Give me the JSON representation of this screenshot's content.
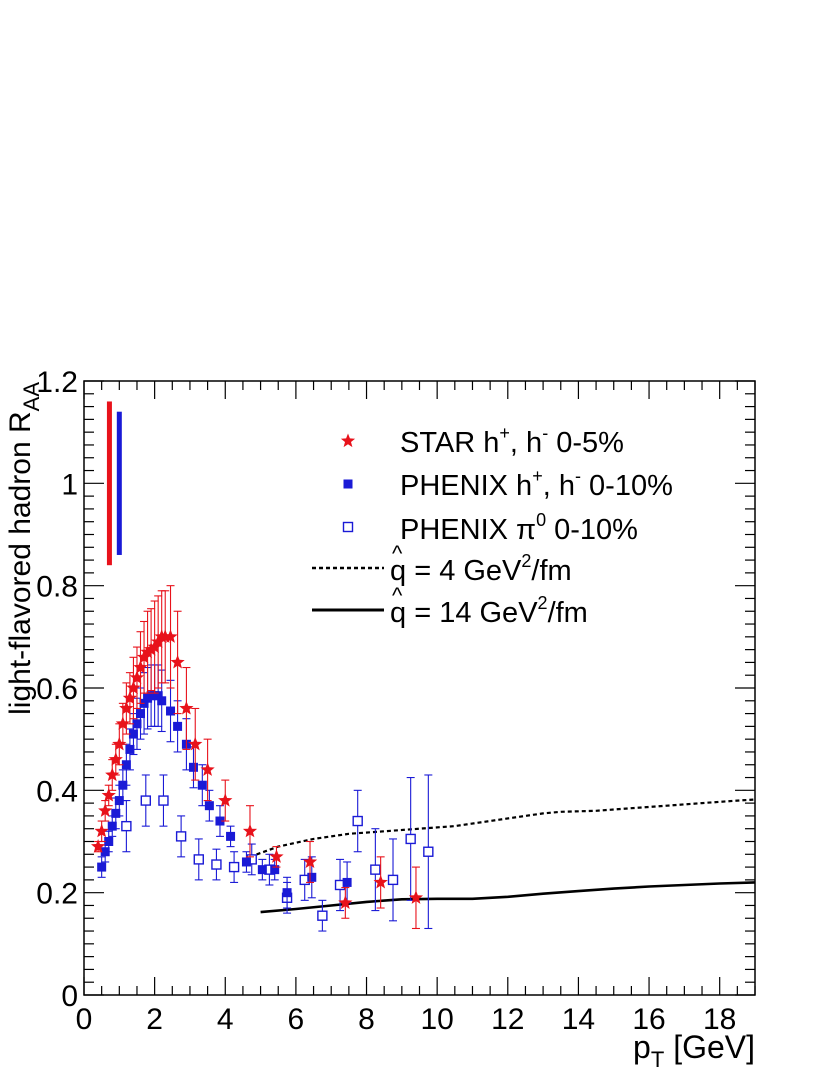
{
  "chart_data": {
    "type": "scatter",
    "xlabel": {
      "main": "p",
      "sub": "T",
      "unit": " [GeV]"
    },
    "ylabel": {
      "main": "light-flavored hadron R",
      "sub": "AA"
    },
    "xlim": [
      0,
      19
    ],
    "ylim": [
      0,
      1.2
    ],
    "xticks": [
      "0",
      "2",
      "4",
      "6",
      "8",
      "10",
      "12",
      "14",
      "16",
      "18"
    ],
    "xtick_values": [
      0,
      2,
      4,
      6,
      8,
      10,
      12,
      14,
      16,
      18
    ],
    "yticks": [
      "0",
      "0.2",
      "0.4",
      "0.6",
      "0.8",
      "1",
      "1.2"
    ],
    "ytick_values": [
      0,
      0.2,
      0.4,
      0.6,
      0.8,
      1.0,
      1.2
    ],
    "normalization_bars": [
      {
        "name": "STAR",
        "x": 0.72,
        "low": 0.84,
        "high": 1.16,
        "color": "#e8121b"
      },
      {
        "name": "PHENIX",
        "x": 1.0,
        "low": 0.86,
        "high": 1.14,
        "color": "#1a1ad6"
      }
    ],
    "series": [
      {
        "name": "STAR h+, h- 0-5%",
        "legend": {
          "name": "STAR",
          "particle": "h",
          "charges": [
            "+",
            "-"
          ],
          "centrality": "0-5%"
        },
        "marker": "star",
        "color": "#e8121b",
        "points": [
          [
            0.4,
            0.29,
            0.01
          ],
          [
            0.5,
            0.32,
            0.02
          ],
          [
            0.6,
            0.36,
            0.02
          ],
          [
            0.7,
            0.39,
            0.02
          ],
          [
            0.8,
            0.43,
            0.03
          ],
          [
            0.9,
            0.46,
            0.03
          ],
          [
            1.0,
            0.49,
            0.04
          ],
          [
            1.1,
            0.53,
            0.04
          ],
          [
            1.2,
            0.56,
            0.05
          ],
          [
            1.3,
            0.58,
            0.05
          ],
          [
            1.4,
            0.6,
            0.06
          ],
          [
            1.5,
            0.62,
            0.06
          ],
          [
            1.6,
            0.64,
            0.07
          ],
          [
            1.7,
            0.66,
            0.07
          ],
          [
            1.8,
            0.67,
            0.08
          ],
          [
            1.9,
            0.675,
            0.08
          ],
          [
            2.0,
            0.68,
            0.09
          ],
          [
            2.1,
            0.69,
            0.09
          ],
          [
            2.2,
            0.7,
            0.09
          ],
          [
            2.3,
            0.7,
            0.09
          ],
          [
            2.45,
            0.7,
            0.1
          ],
          [
            2.65,
            0.65,
            0.1
          ],
          [
            2.9,
            0.56,
            0.08
          ],
          [
            3.15,
            0.49,
            0.07
          ],
          [
            3.5,
            0.44,
            0.06
          ],
          [
            4.0,
            0.38,
            0.04
          ],
          [
            4.7,
            0.32,
            0.05
          ],
          [
            5.45,
            0.27,
            0.02
          ],
          [
            6.4,
            0.26,
            0.04
          ],
          [
            7.4,
            0.18,
            0.03
          ],
          [
            8.4,
            0.22,
            0.05
          ],
          [
            9.4,
            0.19,
            0.06
          ]
        ]
      },
      {
        "name": "PHENIX h+, h- 0-10%",
        "legend": {
          "name": "PHENIX",
          "particle": "h",
          "charges": [
            "+",
            "-"
          ],
          "centrality": "0-10%"
        },
        "marker": "square-filled",
        "color": "#1a1ad6",
        "points": [
          [
            0.5,
            0.25,
            0.02
          ],
          [
            0.6,
            0.28,
            0.02
          ],
          [
            0.7,
            0.3,
            0.02
          ],
          [
            0.8,
            0.33,
            0.02
          ],
          [
            0.9,
            0.355,
            0.03
          ],
          [
            1.0,
            0.38,
            0.03
          ],
          [
            1.1,
            0.41,
            0.03
          ],
          [
            1.2,
            0.45,
            0.04
          ],
          [
            1.3,
            0.48,
            0.04
          ],
          [
            1.4,
            0.51,
            0.04
          ],
          [
            1.5,
            0.53,
            0.05
          ],
          [
            1.6,
            0.55,
            0.05
          ],
          [
            1.7,
            0.57,
            0.06
          ],
          [
            1.8,
            0.58,
            0.06
          ],
          [
            1.9,
            0.585,
            0.06
          ],
          [
            2.0,
            0.585,
            0.06
          ],
          [
            2.1,
            0.585,
            0.06
          ],
          [
            2.2,
            0.575,
            0.06
          ],
          [
            2.45,
            0.555,
            0.06
          ],
          [
            2.65,
            0.525,
            0.05
          ],
          [
            2.9,
            0.49,
            0.05
          ],
          [
            3.1,
            0.445,
            0.04
          ],
          [
            3.35,
            0.41,
            0.04
          ],
          [
            3.55,
            0.37,
            0.03
          ],
          [
            3.85,
            0.34,
            0.03
          ],
          [
            4.15,
            0.31,
            0.02
          ],
          [
            4.6,
            0.26,
            0.02
          ],
          [
            5.05,
            0.245,
            0.02
          ],
          [
            5.4,
            0.245,
            0.02
          ],
          [
            5.75,
            0.2,
            0.03
          ],
          [
            6.45,
            0.23,
            0.04
          ],
          [
            7.45,
            0.22,
            0.04
          ]
        ]
      },
      {
        "name": "PHENIX pi0 0-10%",
        "legend": {
          "name": "PHENIX",
          "particle": "π",
          "charges": [
            "0"
          ],
          "centrality": "0-10%"
        },
        "marker": "square-open",
        "color": "#1a1ad6",
        "points": [
          [
            1.2,
            0.33,
            0.05
          ],
          [
            1.75,
            0.38,
            0.05
          ],
          [
            2.25,
            0.38,
            0.05
          ],
          [
            2.75,
            0.31,
            0.04
          ],
          [
            3.25,
            0.265,
            0.04
          ],
          [
            3.75,
            0.255,
            0.03
          ],
          [
            4.25,
            0.25,
            0.03
          ],
          [
            4.75,
            0.265,
            0.03
          ],
          [
            5.25,
            0.245,
            0.03
          ],
          [
            5.75,
            0.19,
            0.03
          ],
          [
            6.25,
            0.225,
            0.04
          ],
          [
            6.75,
            0.155,
            0.03
          ],
          [
            7.25,
            0.215,
            0.05
          ],
          [
            7.75,
            0.34,
            0.06
          ],
          [
            8.25,
            0.245,
            0.08
          ],
          [
            8.75,
            0.225,
            0.08
          ],
          [
            9.25,
            0.305,
            0.12
          ],
          [
            9.75,
            0.28,
            0.15
          ]
        ]
      }
    ],
    "curves": [
      {
        "name": "q-hat = 4 GeV2/fm",
        "legend": {
          "symbol": "q",
          "lhs_suffix": " = 4 GeV",
          "power": "2",
          "unit": "/fm"
        },
        "style": "dashed",
        "x": [
          4.7,
          5.5,
          6.5,
          7.5,
          8.5,
          9.5,
          10.5,
          11.5,
          12.5,
          13.0,
          13.5,
          14.5,
          15.5,
          16.5,
          17.5,
          18.5,
          19.0
        ],
        "y": [
          0.27,
          0.29,
          0.305,
          0.315,
          0.32,
          0.325,
          0.33,
          0.34,
          0.35,
          0.355,
          0.358,
          0.36,
          0.365,
          0.37,
          0.375,
          0.38,
          0.382
        ]
      },
      {
        "name": "q-hat = 14 GeV2/fm",
        "legend": {
          "symbol": "q",
          "lhs_suffix": " = 14 GeV",
          "power": "2",
          "unit": "/fm"
        },
        "style": "solid",
        "x": [
          5.0,
          6.0,
          7.0,
          8.0,
          9.0,
          10.0,
          11.0,
          12.0,
          13.0,
          14.0,
          15.0,
          16.0,
          17.0,
          18.0,
          19.0
        ],
        "y": [
          0.162,
          0.168,
          0.175,
          0.182,
          0.187,
          0.188,
          0.188,
          0.192,
          0.198,
          0.203,
          0.208,
          0.212,
          0.215,
          0.218,
          0.22
        ]
      }
    ]
  }
}
